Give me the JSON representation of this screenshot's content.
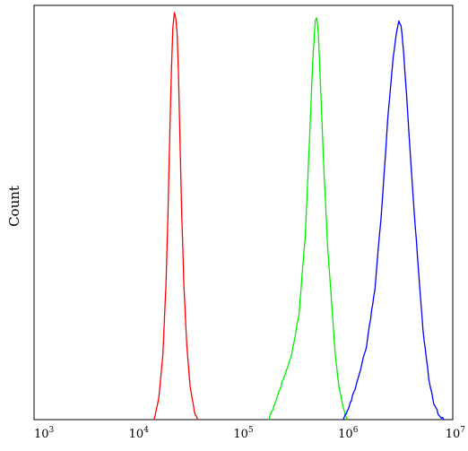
{
  "chart_data": {
    "type": "line",
    "xscale": "log",
    "xlim": [
      1000,
      10000000
    ],
    "ylim": [
      0,
      1
    ],
    "grid": false,
    "ylabel": "Count",
    "xlabel": "",
    "xticks": [
      {
        "base": "10",
        "exp": "3",
        "value": 1000
      },
      {
        "base": "10",
        "exp": "4",
        "value": 10000
      },
      {
        "base": "10",
        "exp": "5",
        "value": 100000
      },
      {
        "base": "10",
        "exp": "6",
        "value": 1000000
      },
      {
        "base": "10",
        "exp": "7",
        "value": 10000000
      }
    ],
    "series": [
      {
        "color": "#ff0000",
        "x": [
          14000,
          15500,
          17000,
          18200,
          19000,
          19800,
          20500,
          21200,
          21900,
          22500,
          23300,
          24000,
          24800,
          25800,
          27000,
          28800,
          31000,
          34000,
          36500
        ],
        "y": [
          0.0,
          0.05,
          0.16,
          0.33,
          0.5,
          0.7,
          0.85,
          0.96,
          1.0,
          0.99,
          0.95,
          0.85,
          0.68,
          0.5,
          0.33,
          0.18,
          0.08,
          0.02,
          0.0
        ]
      },
      {
        "color": "#00ee00",
        "x": [
          175000,
          200000,
          240000,
          290000,
          340000,
          390000,
          430000,
          460000,
          485000,
          500000,
          520000,
          550000,
          590000,
          640000,
          700000,
          760000,
          820000,
          880000,
          950000,
          1000000
        ],
        "y": [
          0.0,
          0.04,
          0.1,
          0.16,
          0.26,
          0.45,
          0.7,
          0.88,
          0.98,
          0.99,
          0.95,
          0.8,
          0.6,
          0.42,
          0.28,
          0.15,
          0.08,
          0.04,
          0.01,
          0.0
        ]
      },
      {
        "color": "#0000ff",
        "x": [
          900000,
          1050000,
          1250000,
          1500000,
          1800000,
          2100000,
          2400000,
          2700000,
          2900000,
          3050000,
          3200000,
          3400000,
          3700000,
          4100000,
          4600000,
          5200000,
          5900000,
          6600000,
          7400000,
          8200000
        ],
        "y": [
          0.0,
          0.04,
          0.1,
          0.18,
          0.32,
          0.52,
          0.74,
          0.89,
          0.95,
          0.98,
          0.97,
          0.9,
          0.76,
          0.58,
          0.4,
          0.22,
          0.1,
          0.04,
          0.01,
          0.0
        ]
      }
    ]
  }
}
